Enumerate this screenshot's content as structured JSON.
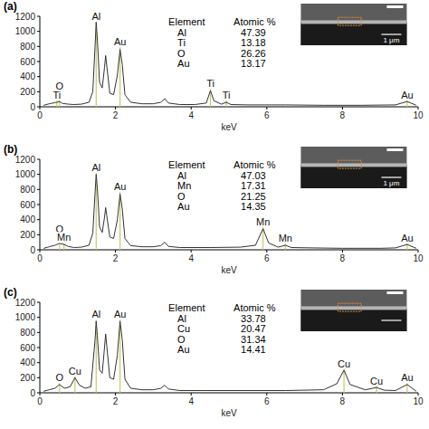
{
  "chart_data": [
    {
      "type": "line",
      "title": "(a)",
      "x_label": "keV",
      "xlim": [
        0,
        10
      ],
      "xticks": [
        0,
        2,
        4,
        6,
        8,
        10
      ],
      "ylim": [
        0,
        1200
      ],
      "yticks": [
        0,
        200,
        400,
        600,
        800,
        1000,
        1200
      ],
      "color": "#333333",
      "x": [
        0.1,
        0.25,
        0.4,
        0.45,
        0.52,
        0.6,
        0.75,
        0.9,
        1.1,
        1.3,
        1.4,
        1.46,
        1.49,
        1.52,
        1.58,
        1.65,
        1.71,
        1.74,
        1.77,
        1.85,
        1.95,
        2.05,
        2.12,
        2.18,
        2.25,
        2.4,
        2.7,
        3.0,
        3.2,
        3.3,
        3.4,
        3.7,
        4.1,
        4.4,
        4.51,
        4.6,
        4.8,
        4.93,
        5.05,
        5.5,
        6.5,
        7.5,
        8.5,
        9.4,
        9.71,
        9.95
      ],
      "values": [
        20,
        40,
        55,
        60,
        70,
        45,
        35,
        30,
        35,
        60,
        200,
        800,
        1120,
        900,
        320,
        250,
        520,
        680,
        540,
        180,
        160,
        420,
        760,
        560,
        160,
        60,
        40,
        40,
        60,
        108,
        50,
        30,
        30,
        50,
        216,
        80,
        35,
        60,
        30,
        25,
        25,
        20,
        20,
        25,
        70,
        20
      ],
      "annotations": [
        {
          "text": "O",
          "x": 0.52,
          "y": 220
        },
        {
          "text": "Ti",
          "x": 0.45,
          "y": 95
        },
        {
          "text": "Al",
          "x": 1.49,
          "y": 1140
        },
        {
          "text": "Au",
          "x": 2.12,
          "y": 800
        },
        {
          "text": "Ti",
          "x": 4.51,
          "y": 250
        },
        {
          "text": "Ti",
          "x": 4.93,
          "y": 95
        },
        {
          "text": "Au",
          "x": 9.71,
          "y": 100
        }
      ],
      "table": {
        "columns": [
          "Element",
          "Atomic %"
        ],
        "rows": [
          [
            "Al",
            47.39
          ],
          [
            "Ti",
            13.18
          ],
          [
            "O",
            26.26
          ],
          [
            "Au",
            13.17
          ]
        ]
      },
      "inset": {
        "scale_bar": "1 μm"
      }
    },
    {
      "type": "line",
      "title": "(b)",
      "x_label": "keV",
      "xlim": [
        0,
        10
      ],
      "xticks": [
        0,
        2,
        4,
        6,
        8,
        10
      ],
      "ylim": [
        0,
        1200
      ],
      "yticks": [
        0,
        200,
        400,
        600,
        800,
        1000,
        1200
      ],
      "color": "#333333",
      "x": [
        0.1,
        0.25,
        0.4,
        0.52,
        0.64,
        0.75,
        0.9,
        1.1,
        1.3,
        1.4,
        1.46,
        1.49,
        1.52,
        1.58,
        1.65,
        1.71,
        1.74,
        1.77,
        1.85,
        1.95,
        2.05,
        2.12,
        2.18,
        2.25,
        2.4,
        2.7,
        3.0,
        3.2,
        3.3,
        3.4,
        3.7,
        4.5,
        5.3,
        5.7,
        5.9,
        6.05,
        6.3,
        6.49,
        6.65,
        7.2,
        8.0,
        9.0,
        9.4,
        9.71,
        9.95
      ],
      "values": [
        20,
        40,
        60,
        85,
        70,
        45,
        30,
        35,
        60,
        220,
        750,
        1000,
        820,
        300,
        230,
        430,
        560,
        450,
        170,
        150,
        400,
        740,
        540,
        150,
        55,
        40,
        40,
        55,
        100,
        45,
        30,
        30,
        35,
        60,
        280,
        90,
        35,
        60,
        30,
        25,
        20,
        20,
        25,
        70,
        20
      ],
      "annotations": [
        {
          "text": "O",
          "x": 0.52,
          "y": 220
        },
        {
          "text": "Mn",
          "x": 0.64,
          "y": 105
        },
        {
          "text": "Al",
          "x": 1.49,
          "y": 1030
        },
        {
          "text": "Au",
          "x": 2.12,
          "y": 780
        },
        {
          "text": "Mn",
          "x": 5.9,
          "y": 310
        },
        {
          "text": "Mn",
          "x": 6.49,
          "y": 95
        },
        {
          "text": "Au",
          "x": 9.71,
          "y": 100
        }
      ],
      "table": {
        "columns": [
          "Element",
          "Atomic %"
        ],
        "rows": [
          [
            "Al",
            47.03
          ],
          [
            "Mn",
            17.31
          ],
          [
            "O",
            21.25
          ],
          [
            "Au",
            14.35
          ]
        ]
      },
      "inset": {
        "scale_bar": "1 μm"
      }
    },
    {
      "type": "line",
      "title": "(c)",
      "x_label": "keV",
      "xlim": [
        0,
        10
      ],
      "xticks": [
        0,
        2,
        4,
        6,
        8,
        10
      ],
      "ylim": [
        0,
        1200
      ],
      "yticks": [
        0,
        200,
        400,
        600,
        800,
        1000,
        1200
      ],
      "color": "#333333",
      "x": [
        0.1,
        0.25,
        0.4,
        0.52,
        0.65,
        0.8,
        0.93,
        1.05,
        1.2,
        1.35,
        1.46,
        1.49,
        1.52,
        1.58,
        1.65,
        1.71,
        1.74,
        1.77,
        1.85,
        1.95,
        2.05,
        2.12,
        2.18,
        2.25,
        2.4,
        2.7,
        3.0,
        3.2,
        3.3,
        3.4,
        3.7,
        5.0,
        6.5,
        7.5,
        7.85,
        8.04,
        8.2,
        8.6,
        8.9,
        9.1,
        9.4,
        9.71,
        9.95
      ],
      "values": [
        20,
        40,
        60,
        110,
        60,
        80,
        200,
        100,
        60,
        80,
        700,
        950,
        760,
        300,
        260,
        600,
        780,
        620,
        200,
        180,
        500,
        950,
        700,
        180,
        60,
        40,
        40,
        60,
        100,
        50,
        30,
        30,
        30,
        40,
        120,
        300,
        110,
        40,
        70,
        35,
        30,
        110,
        20
      ],
      "annotations": [
        {
          "text": "O",
          "x": 0.52,
          "y": 140
        },
        {
          "text": "Cu",
          "x": 0.93,
          "y": 230
        },
        {
          "text": "Al",
          "x": 1.49,
          "y": 980
        },
        {
          "text": "Au",
          "x": 2.12,
          "y": 980
        },
        {
          "text": "Cu",
          "x": 8.04,
          "y": 330
        },
        {
          "text": "Cu",
          "x": 8.9,
          "y": 100
        },
        {
          "text": "Au",
          "x": 9.71,
          "y": 140
        }
      ],
      "table": {
        "columns": [
          "Element",
          "Atomic %"
        ],
        "rows": [
          [
            "Al",
            33.78
          ],
          [
            "Cu",
            20.47
          ],
          [
            "O",
            31.34
          ],
          [
            "Au",
            14.41
          ]
        ]
      }
    }
  ]
}
